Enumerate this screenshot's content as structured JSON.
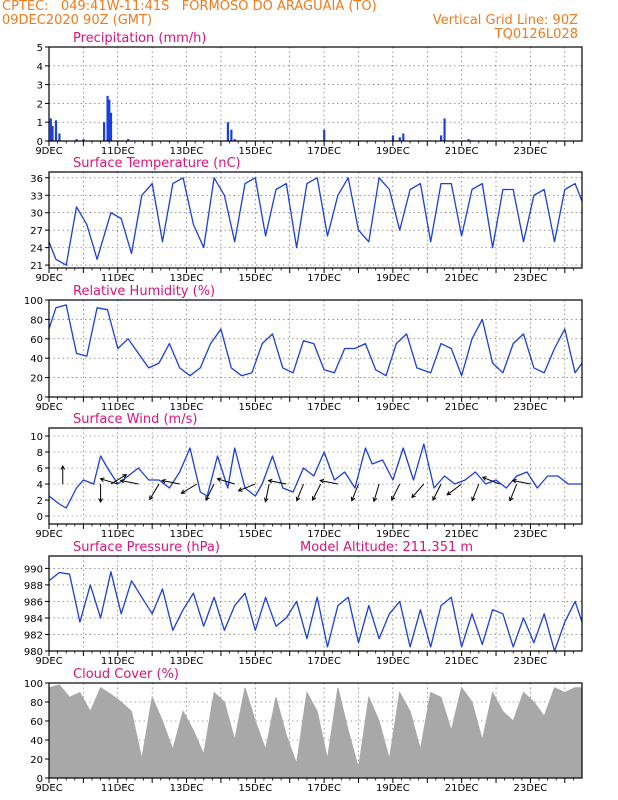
{
  "header": {
    "line1": "CPTEC:   049:41W-11:41S   FORMOSO DO ARAGUAIA (TO)",
    "line2_left": "09DEC2020 90Z (GMT)",
    "line2_right": "Vertical Grid Line: 90Z",
    "line3_right": "TQ0126L028"
  },
  "colors": {
    "header": "#f07a1c",
    "title": "#e0107a",
    "line": "#1a3fe0",
    "bar": "#1a3fe0",
    "cloud": "#a8a8a8",
    "grid": "#555555"
  },
  "chart_data": [
    {
      "type": "bar",
      "title": "Precipitation (mm/h)",
      "x_ticks": [
        "9DEC",
        "11DEC",
        "13DEC",
        "15DEC",
        "17DEC",
        "19DEC",
        "21DEC",
        "23DEC"
      ],
      "xlim": [
        0,
        15.5
      ],
      "ylim": [
        0,
        5
      ],
      "y_ticks": [
        "0",
        "1",
        "2",
        "3",
        "4",
        "5"
      ],
      "x": [
        0.05,
        0.1,
        0.2,
        0.3,
        0.8,
        1.0,
        1.6,
        1.7,
        1.75,
        1.8,
        2.3,
        5.2,
        5.3,
        5.4,
        8.0,
        10.0,
        10.2,
        10.3,
        11.4,
        11.5,
        12.2
      ],
      "values": [
        1.2,
        0.8,
        1.1,
        0.4,
        0.1,
        0.1,
        1.0,
        2.4,
        2.2,
        1.5,
        0.1,
        1.0,
        0.6,
        0.1,
        0.6,
        0.3,
        0.2,
        0.4,
        0.3,
        1.2,
        0.1
      ],
      "grid": true
    },
    {
      "type": "line",
      "title": "Surface Temperature (nC)",
      "x_ticks": [
        "9DEC",
        "11DEC",
        "13DEC",
        "15DEC",
        "17DEC",
        "19DEC",
        "21DEC",
        "23DEC"
      ],
      "xlim": [
        0,
        15.5
      ],
      "ylim": [
        20.5,
        37
      ],
      "y_ticks": [
        "21",
        "24",
        "27",
        "30",
        "33",
        "36"
      ],
      "x": [
        0,
        0.2,
        0.5,
        0.8,
        1.1,
        1.4,
        1.8,
        2.1,
        2.4,
        2.7,
        3.0,
        3.3,
        3.6,
        3.9,
        4.2,
        4.5,
        4.8,
        5.1,
        5.4,
        5.7,
        6.0,
        6.3,
        6.6,
        6.9,
        7.2,
        7.5,
        7.8,
        8.1,
        8.4,
        8.7,
        9.0,
        9.3,
        9.6,
        9.9,
        10.2,
        10.5,
        10.8,
        11.1,
        11.4,
        11.7,
        12.0,
        12.3,
        12.6,
        12.9,
        13.2,
        13.5,
        13.8,
        14.1,
        14.4,
        14.7,
        15.0,
        15.3,
        15.5
      ],
      "values": [
        25,
        22,
        21,
        31,
        28,
        22,
        30,
        29,
        23,
        33,
        35,
        25,
        35,
        36,
        28,
        24,
        36,
        33,
        25,
        35,
        36,
        26,
        34,
        35,
        24,
        35,
        36,
        26,
        33,
        36,
        27,
        25,
        36,
        34,
        27,
        34,
        35,
        25,
        35,
        35,
        26,
        34,
        35,
        24,
        34,
        34,
        25,
        33,
        34,
        25,
        34,
        35,
        32
      ],
      "grid": true
    },
    {
      "type": "line",
      "title": "Relative Humidity (%)",
      "x_ticks": [
        "9DEC",
        "11DEC",
        "13DEC",
        "15DEC",
        "17DEC",
        "19DEC",
        "21DEC",
        "23DEC"
      ],
      "xlim": [
        0,
        15.5
      ],
      "ylim": [
        0,
        100
      ],
      "y_ticks": [
        "0",
        "20",
        "40",
        "60",
        "80",
        "100"
      ],
      "x": [
        0,
        0.2,
        0.5,
        0.8,
        1.1,
        1.4,
        1.7,
        2.0,
        2.3,
        2.6,
        2.9,
        3.2,
        3.5,
        3.8,
        4.1,
        4.4,
        4.7,
        5.0,
        5.3,
        5.6,
        5.9,
        6.2,
        6.5,
        6.8,
        7.1,
        7.4,
        7.7,
        8.0,
        8.3,
        8.6,
        8.9,
        9.2,
        9.5,
        9.8,
        10.1,
        10.4,
        10.7,
        11.1,
        11.4,
        11.7,
        12.0,
        12.3,
        12.6,
        12.9,
        13.2,
        13.5,
        13.8,
        14.1,
        14.4,
        14.7,
        15.0,
        15.3,
        15.5
      ],
      "values": [
        70,
        92,
        95,
        45,
        42,
        92,
        90,
        50,
        60,
        45,
        30,
        35,
        55,
        30,
        22,
        30,
        55,
        70,
        30,
        22,
        25,
        55,
        65,
        30,
        25,
        58,
        55,
        28,
        25,
        50,
        50,
        55,
        28,
        22,
        55,
        65,
        30,
        25,
        55,
        50,
        22,
        60,
        80,
        35,
        25,
        55,
        65,
        30,
        25,
        50,
        70,
        25,
        35
      ],
      "grid": true
    },
    {
      "type": "line",
      "title": "Surface Wind (m/s)",
      "x_ticks": [
        "9DEC",
        "11DEC",
        "13DEC",
        "15DEC",
        "17DEC",
        "19DEC",
        "21DEC",
        "23DEC"
      ],
      "xlim": [
        0,
        15.5
      ],
      "ylim": [
        -1,
        11
      ],
      "y_ticks": [
        "0",
        "2",
        "4",
        "6",
        "8",
        "10"
      ],
      "x": [
        0,
        0.3,
        0.5,
        0.8,
        1.0,
        1.3,
        1.5,
        1.7,
        2.0,
        2.3,
        2.6,
        2.9,
        3.2,
        3.5,
        3.8,
        4.1,
        4.4,
        4.6,
        4.9,
        5.2,
        5.4,
        5.7,
        6.0,
        6.2,
        6.5,
        6.8,
        7.1,
        7.4,
        7.7,
        8.0,
        8.3,
        8.6,
        8.9,
        9.2,
        9.4,
        9.7,
        10.0,
        10.3,
        10.6,
        10.9,
        11.2,
        11.5,
        11.8,
        12.1,
        12.4,
        12.7,
        13.0,
        13.3,
        13.6,
        13.9,
        14.2,
        14.5,
        14.8,
        15.1,
        15.5
      ],
      "values": [
        2.5,
        1.5,
        1.0,
        3.5,
        4.5,
        4.0,
        7.5,
        6.0,
        4.0,
        5.0,
        6.0,
        4.5,
        4.5,
        3.5,
        5.5,
        8.5,
        3.0,
        2.5,
        7.5,
        3.5,
        8.5,
        3.5,
        2.5,
        4.0,
        7.5,
        3.5,
        3.0,
        6.0,
        5.0,
        8.0,
        4.5,
        5.5,
        3.5,
        8.5,
        6.5,
        7.0,
        4.5,
        8.5,
        4.5,
        9.0,
        3.5,
        5.0,
        4.0,
        4.5,
        5.5,
        4.0,
        4.5,
        3.5,
        5.0,
        5.5,
        3.5,
        5.0,
        5.0,
        4.0,
        4.0
      ],
      "vectors": [
        [
          0.4,
          0,
          1
        ],
        [
          1.5,
          0,
          -1
        ],
        [
          1.8,
          1,
          0.6
        ],
        [
          2.0,
          -1,
          0.3
        ],
        [
          2.6,
          -1,
          0.2
        ],
        [
          3.2,
          -0.6,
          -1
        ],
        [
          3.8,
          -1,
          0.2
        ],
        [
          4.3,
          -1,
          -0.6
        ],
        [
          4.8,
          -0.5,
          -1
        ],
        [
          5.4,
          -1,
          0.3
        ],
        [
          6.0,
          -1,
          -0.4
        ],
        [
          6.4,
          -0.2,
          -1
        ],
        [
          6.9,
          -1,
          0.2
        ],
        [
          7.4,
          -0.4,
          -1
        ],
        [
          7.9,
          -0.5,
          -1
        ],
        [
          8.4,
          -1,
          0.2
        ],
        [
          9.0,
          -0.4,
          -1
        ],
        [
          9.6,
          -0.3,
          -1
        ],
        [
          10.2,
          -0.5,
          -1
        ],
        [
          10.9,
          -0.7,
          -0.8
        ],
        [
          11.4,
          -0.5,
          -1
        ],
        [
          12.0,
          -0.8,
          -0.6
        ],
        [
          12.5,
          -0.4,
          -1
        ],
        [
          13.1,
          -1,
          0.4
        ],
        [
          13.6,
          -0.4,
          -1
        ],
        [
          14.0,
          -1,
          0.2
        ]
      ],
      "grid": true
    },
    {
      "type": "line",
      "title": "Surface Pressure (hPa)",
      "subtitle": "Model Altitude: 211.351  m",
      "x_ticks": [
        "9DEC",
        "11DEC",
        "13DEC",
        "15DEC",
        "17DEC",
        "19DEC",
        "21DEC",
        "23DEC"
      ],
      "xlim": [
        0,
        15.5
      ],
      "ylim": [
        980,
        991.5
      ],
      "y_ticks": [
        "980",
        "982",
        "984",
        "986",
        "988",
        "990"
      ],
      "x": [
        0,
        0.3,
        0.6,
        0.9,
        1.2,
        1.5,
        1.8,
        2.1,
        2.4,
        2.7,
        3.0,
        3.3,
        3.6,
        3.9,
        4.2,
        4.5,
        4.8,
        5.1,
        5.4,
        5.7,
        6.0,
        6.3,
        6.6,
        6.9,
        7.2,
        7.5,
        7.8,
        8.1,
        8.4,
        8.7,
        9.0,
        9.3,
        9.6,
        9.9,
        10.2,
        10.5,
        10.8,
        11.1,
        11.4,
        11.7,
        12.0,
        12.3,
        12.6,
        12.9,
        13.2,
        13.5,
        13.8,
        14.1,
        14.4,
        14.7,
        15.0,
        15.3,
        15.5
      ],
      "values": [
        988.5,
        989.5,
        989.3,
        983.5,
        988.0,
        984.0,
        989.6,
        984.5,
        988.5,
        986.5,
        984.5,
        987.5,
        982.5,
        985.0,
        987.0,
        983.0,
        986.5,
        982.5,
        985.5,
        987.0,
        982.5,
        986.5,
        983.0,
        984.0,
        986.0,
        981.5,
        986.5,
        980.5,
        985.5,
        986.5,
        981.0,
        985.5,
        981.5,
        984.5,
        986.0,
        980.5,
        985.0,
        980.5,
        985.5,
        986.5,
        980.5,
        984.5,
        980.8,
        985.0,
        984.5,
        980.5,
        984.0,
        981.0,
        984.5,
        980.0,
        983.5,
        986.0,
        983.5
      ],
      "grid": true
    },
    {
      "type": "area",
      "title": "Cloud Cover (%)",
      "x_ticks": [
        "9DEC",
        "11DEC",
        "13DEC",
        "15DEC",
        "17DEC",
        "19DEC",
        "21DEC",
        "23DEC"
      ],
      "xlim": [
        0,
        15.5
      ],
      "ylim": [
        0,
        100
      ],
      "y_ticks": [
        "0",
        "20",
        "40",
        "60",
        "80",
        "100"
      ],
      "x": [
        0,
        0.3,
        0.6,
        0.9,
        1.2,
        1.5,
        1.8,
        2.1,
        2.4,
        2.7,
        3.0,
        3.3,
        3.6,
        3.9,
        4.2,
        4.5,
        4.8,
        5.1,
        5.4,
        5.7,
        6.0,
        6.3,
        6.6,
        6.9,
        7.2,
        7.5,
        7.8,
        8.1,
        8.4,
        8.7,
        9.0,
        9.3,
        9.6,
        9.9,
        10.2,
        10.5,
        10.8,
        11.1,
        11.4,
        11.7,
        12.0,
        12.3,
        12.6,
        12.9,
        13.2,
        13.5,
        13.8,
        14.1,
        14.4,
        14.7,
        15.0,
        15.3,
        15.5
      ],
      "values": [
        95,
        98,
        85,
        90,
        70,
        95,
        88,
        80,
        70,
        20,
        85,
        60,
        30,
        70,
        50,
        25,
        90,
        80,
        40,
        95,
        60,
        30,
        85,
        45,
        15,
        90,
        70,
        20,
        95,
        50,
        10,
        85,
        60,
        20,
        90,
        70,
        30,
        90,
        85,
        50,
        95,
        80,
        40,
        90,
        70,
        60,
        90,
        80,
        65,
        95,
        90,
        95,
        95
      ],
      "grid": true
    }
  ]
}
